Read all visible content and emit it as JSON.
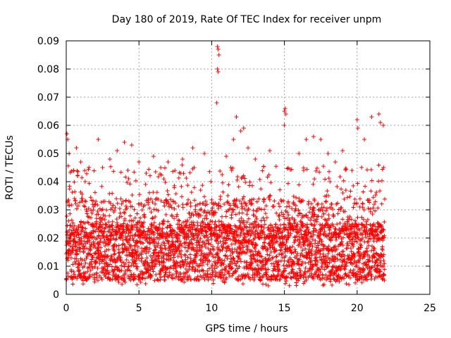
{
  "chart_data": {
    "type": "scatter",
    "title": "Day 180 of 2019, Rate Of TEC Index for receiver unpm",
    "xlabel": "GPS time / hours",
    "ylabel": "ROTI / TECUs",
    "xlim": [
      0,
      25
    ],
    "ylim": [
      0,
      0.09
    ],
    "x_ticks": [
      "0",
      "5",
      "10",
      "15",
      "20",
      "25"
    ],
    "x_tick_values": [
      0,
      5,
      10,
      15,
      20,
      25
    ],
    "y_ticks": [
      "0",
      "0.01",
      "0.02",
      "0.03",
      "0.04",
      "0.05",
      "0.06",
      "0.07",
      "0.08",
      "0.09"
    ],
    "y_tick_values": [
      0,
      0.01,
      0.02,
      0.03,
      0.04,
      0.05,
      0.06,
      0.07,
      0.08,
      0.09
    ],
    "grid": true,
    "marker": "+",
    "series": [
      {
        "name": "ROTI",
        "color": "#ff0000",
        "x_range": [
          0,
          21.9
        ],
        "dense_band": [
          0.005,
          0.025
        ],
        "points": [
          [
            0.05,
            0.057
          ],
          [
            0.1,
            0.055
          ],
          [
            0.2,
            0.05
          ],
          [
            0.5,
            0.044
          ],
          [
            0.7,
            0.052
          ],
          [
            1.0,
            0.047
          ],
          [
            1.3,
            0.04
          ],
          [
            2.2,
            0.055
          ],
          [
            2.5,
            0.045
          ],
          [
            3.0,
            0.048
          ],
          [
            3.5,
            0.051
          ],
          [
            4.0,
            0.054
          ],
          [
            4.5,
            0.053
          ],
          [
            5.0,
            0.047
          ],
          [
            5.5,
            0.043
          ],
          [
            6.0,
            0.049
          ],
          [
            6.5,
            0.045
          ],
          [
            7.0,
            0.047
          ],
          [
            8.0,
            0.048
          ],
          [
            8.7,
            0.052
          ],
          [
            9.5,
            0.05
          ],
          [
            10.4,
            0.088
          ],
          [
            10.45,
            0.087
          ],
          [
            10.5,
            0.085
          ],
          [
            10.4,
            0.08
          ],
          [
            10.45,
            0.079
          ],
          [
            10.35,
            0.068
          ],
          [
            11.0,
            0.049
          ],
          [
            11.5,
            0.055
          ],
          [
            11.7,
            0.063
          ],
          [
            12.0,
            0.058
          ],
          [
            12.2,
            0.059
          ],
          [
            12.5,
            0.052
          ],
          [
            13.0,
            0.048
          ],
          [
            14.0,
            0.051
          ],
          [
            15.0,
            0.065
          ],
          [
            15.05,
            0.066
          ],
          [
            15.1,
            0.064
          ],
          [
            15.0,
            0.06
          ],
          [
            16.0,
            0.05
          ],
          [
            16.5,
            0.055
          ],
          [
            17.0,
            0.056
          ],
          [
            17.5,
            0.055
          ],
          [
            18.0,
            0.05
          ],
          [
            18.5,
            0.047
          ],
          [
            19.0,
            0.051
          ],
          [
            20.0,
            0.062
          ],
          [
            20.05,
            0.059
          ],
          [
            20.5,
            0.055
          ],
          [
            21.0,
            0.063
          ],
          [
            21.5,
            0.064
          ],
          [
            21.6,
            0.061
          ],
          [
            21.8,
            0.06
          ]
        ]
      }
    ]
  }
}
